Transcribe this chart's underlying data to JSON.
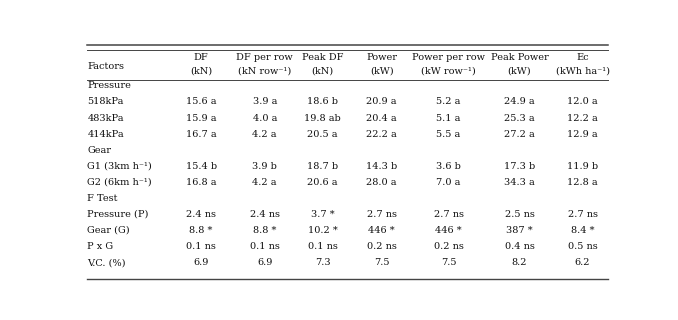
{
  "col_headers_line1": [
    "DF",
    "DF per row",
    "Peak DF",
    "Power",
    "Power per row",
    "Peak Power",
    "Ec"
  ],
  "col_headers_line2": [
    "(kN)",
    "(kN row⁻¹)",
    "(kN)",
    "(kW)",
    "(kW row⁻¹)",
    "(kW)",
    "(kWh ha⁻¹)"
  ],
  "row_label_col": "Factors",
  "sections": [
    {
      "section_label": "Pressure",
      "rows": [
        {
          "label": "518kPa",
          "values": [
            "15.6 a",
            "3.9 a",
            "18.6 b",
            "20.9 a",
            "5.2 a",
            "24.9 a",
            "12.0 a"
          ]
        },
        {
          "label": "483kPa",
          "values": [
            "15.9 a",
            "4.0 a",
            "19.8 ab",
            "20.4 a",
            "5.1 a",
            "25.3 a",
            "12.2 a"
          ]
        },
        {
          "label": "414kPa",
          "values": [
            "16.7 a",
            "4.2 a",
            "20.5 a",
            "22.2 a",
            "5.5 a",
            "27.2 a",
            "12.9 a"
          ]
        }
      ]
    },
    {
      "section_label": "Gear",
      "rows": [
        {
          "label": "G1 (3km h⁻¹)",
          "values": [
            "15.4 b",
            "3.9 b",
            "18.7 b",
            "14.3 b",
            "3.6 b",
            "17.3 b",
            "11.9 b"
          ]
        },
        {
          "label": "G2 (6km h⁻¹)",
          "values": [
            "16.8 a",
            "4.2 a",
            "20.6 a",
            "28.0 a",
            "7.0 a",
            "34.3 a",
            "12.8 a"
          ]
        }
      ]
    },
    {
      "section_label": "F Test",
      "rows": [
        {
          "label": "Pressure (P)",
          "values": [
            "2.4 ns",
            "2.4 ns",
            "3.7 *",
            "2.7 ns",
            "2.7 ns",
            "2.5 ns",
            "2.7 ns"
          ]
        },
        {
          "label": "Gear (G)",
          "values": [
            "8.8 *",
            "8.8 *",
            "10.2 *",
            "446 *",
            "446 *",
            "387 *",
            "8.4 *"
          ]
        },
        {
          "label": "P x G",
          "values": [
            "0.1 ns",
            "0.1 ns",
            "0.1 ns",
            "0.2 ns",
            "0.2 ns",
            "0.4 ns",
            "0.5 ns"
          ]
        },
        {
          "label": "V.C. (%)",
          "values": [
            "6.9",
            "6.9",
            "7.3",
            "7.5",
            "7.5",
            "8.2",
            "6.2"
          ]
        }
      ]
    }
  ],
  "figsize": [
    6.78,
    3.2
  ],
  "dpi": 100,
  "font_size": 7.0,
  "line_color": "#444444",
  "bg_color": "#ffffff",
  "text_color": "#111111",
  "col_bounds": [
    0.0,
    0.158,
    0.285,
    0.4,
    0.505,
    0.625,
    0.76,
    0.895,
    1.0
  ]
}
